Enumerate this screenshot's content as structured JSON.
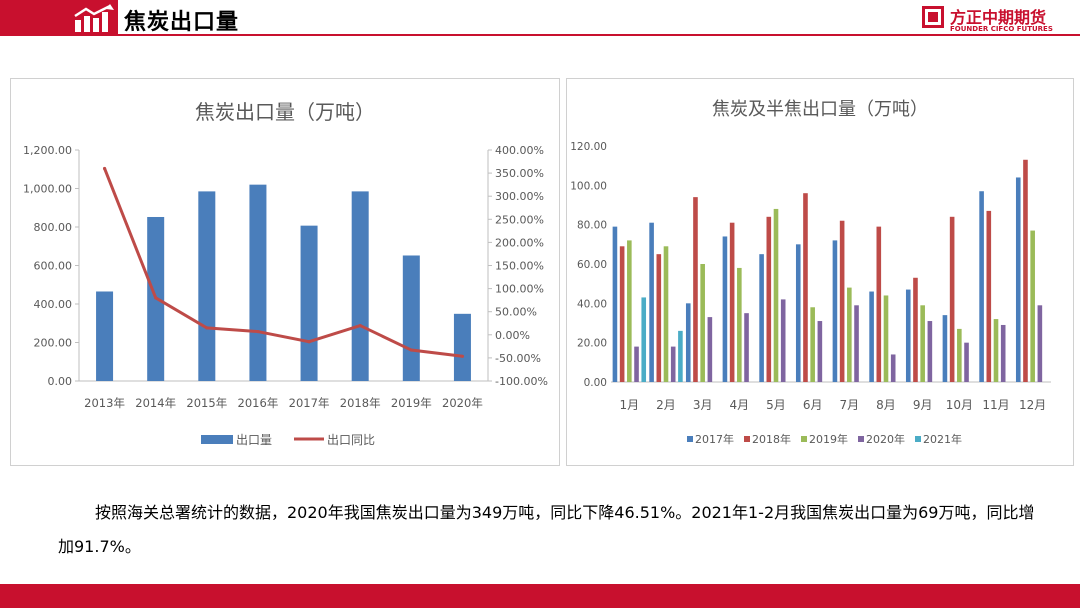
{
  "header": {
    "title": "焦炭出口量",
    "logo_cn": "方正中期期货",
    "logo_en": "FOUNDER CIFCO FUTURES"
  },
  "paragraph": "按照海关总署统计的数据，2020年我国焦炭出口量为349万吨，同比下降46.51%。2021年1-2月我国焦炭出口量为69万吨，同比增加91.7%。",
  "colors": {
    "brand": "#c8102e",
    "bar": "#4a7ebb",
    "line": "#be4b48"
  },
  "chart_data": [
    {
      "type": "bar",
      "title": "焦炭出口量（万吨）",
      "categories": [
        "2013年",
        "2014年",
        "2015年",
        "2016年",
        "2017年",
        "2018年",
        "2019年",
        "2020年"
      ],
      "series": [
        {
          "name": "出口量",
          "axis": "left",
          "kind": "bar",
          "values": [
            465,
            852,
            985,
            1020,
            807,
            985,
            652,
            349
          ]
        },
        {
          "name": "出口同比",
          "axis": "right",
          "kind": "line",
          "values": [
            360,
            80,
            15,
            7,
            -15,
            20,
            -33,
            -46.51
          ]
        }
      ],
      "y_left": {
        "min": 0,
        "max": 1200,
        "step": 200,
        "ticks": [
          "0.00",
          "200.00",
          "400.00",
          "600.00",
          "800.00",
          "1,000.00",
          "1,200.00"
        ]
      },
      "y_right": {
        "min": -100,
        "max": 400,
        "step": 50,
        "ticks": [
          "-100.00%",
          "-50.00%",
          "0.00%",
          "50.00%",
          "100.00%",
          "150.00%",
          "200.00%",
          "250.00%",
          "300.00%",
          "350.00%",
          "400.00%"
        ]
      },
      "legend": "bottom"
    },
    {
      "type": "bar",
      "title": "焦炭及半焦出口量（万吨）",
      "categories": [
        "1月",
        "2月",
        "3月",
        "4月",
        "5月",
        "6月",
        "7月",
        "8月",
        "9月",
        "10月",
        "11月",
        "12月"
      ],
      "series": [
        {
          "name": "2017年",
          "color": "#4a7ebb",
          "values": [
            79,
            81,
            40,
            74,
            65,
            70,
            72,
            46,
            47,
            34,
            97,
            104
          ]
        },
        {
          "name": "2018年",
          "color": "#be4b48",
          "values": [
            69,
            65,
            94,
            81,
            84,
            96,
            82,
            79,
            53,
            84,
            87,
            113
          ]
        },
        {
          "name": "2019年",
          "color": "#9bbb59",
          "values": [
            72,
            69,
            60,
            58,
            88,
            38,
            48,
            44,
            39,
            27,
            32,
            77
          ]
        },
        {
          "name": "2020年",
          "color": "#7f65a0",
          "values": [
            18,
            18,
            33,
            35,
            42,
            31,
            39,
            14,
            31,
            20,
            29,
            39
          ]
        },
        {
          "name": "2021年",
          "color": "#4bacc6",
          "values": [
            43,
            26,
            null,
            null,
            null,
            null,
            null,
            null,
            null,
            null,
            null,
            null
          ]
        }
      ],
      "y": {
        "min": 0,
        "max": 120,
        "step": 20,
        "ticks": [
          "0.00",
          "20.00",
          "40.00",
          "60.00",
          "80.00",
          "100.00",
          "120.00"
        ]
      },
      "legend": "bottom"
    }
  ]
}
